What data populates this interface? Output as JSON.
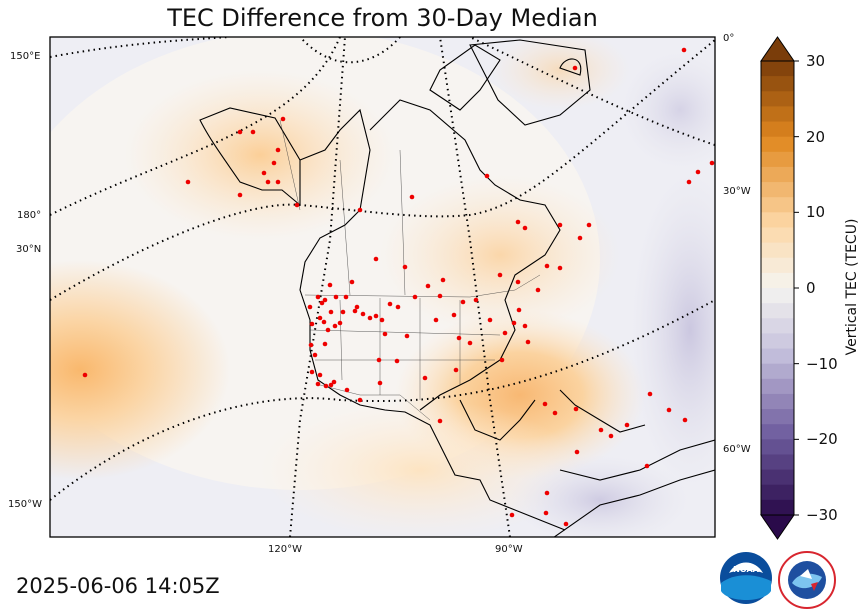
{
  "title": "TEC Difference from 30-Day Median",
  "timestamp": "2025-06-06 14:05Z",
  "map": {
    "lon_labels": [
      "120°W",
      "90°W"
    ],
    "lat_labels": [
      "150°E",
      "180°",
      "30°N",
      "150°W",
      "0°",
      "30°W",
      "60°W"
    ]
  },
  "colorbar": {
    "label": "Vertical TEC (TECU)",
    "ticks": [
      "30",
      "20",
      "10",
      "0",
      "−10",
      "−20",
      "−30"
    ],
    "tick_values": [
      30,
      20,
      10,
      0,
      -10,
      -20,
      -30
    ],
    "range": [
      -30,
      30
    ],
    "colors": {
      "max": "#7a3d0a",
      "high": "#e0871f",
      "mid_high": "#fcd7a6",
      "zero": "#f5f4f0",
      "mid_low": "#c6c1dd",
      "low": "#6c5a9c",
      "min": "#2a0a4a"
    }
  },
  "station_color": "#ee0000",
  "logos": [
    {
      "name": "noaa",
      "text": "NOAA"
    },
    {
      "name": "nws",
      "text": "NATIONAL WEATHER SERVICE"
    }
  ]
}
